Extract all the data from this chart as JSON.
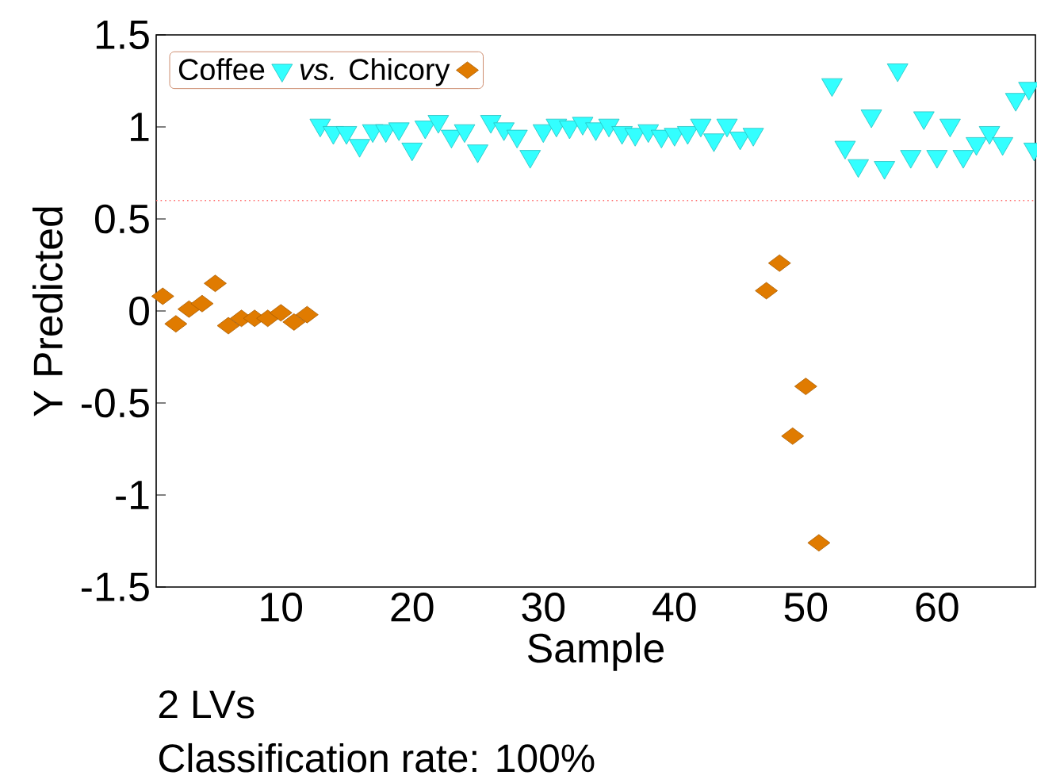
{
  "chart_data": {
    "type": "scatter",
    "xlabel": "Sample",
    "ylabel": "Y Predicted",
    "xlim": [
      0.5,
      67.5
    ],
    "ylim": [
      -1.5,
      1.5
    ],
    "xticks": [
      10,
      20,
      30,
      40,
      50,
      60
    ],
    "yticks": [
      -1.5,
      -1,
      -0.5,
      0,
      0.5,
      1,
      1.5
    ],
    "legend": "top left",
    "series": [
      {
        "name": "Coffee",
        "color": "#33ffff",
        "marker": "triangle",
        "x": [
          13,
          14,
          15,
          16,
          17,
          18,
          19,
          20,
          21,
          22,
          23,
          24,
          25,
          26,
          27,
          28,
          29,
          30,
          31,
          32,
          33,
          34,
          35,
          36,
          37,
          38,
          39,
          40,
          41,
          42,
          43,
          44,
          45,
          46,
          52,
          53,
          54,
          55,
          56,
          57,
          58,
          59,
          60,
          61,
          62,
          63,
          64,
          65,
          66,
          67,
          67.4
        ],
        "values": [
          1.01,
          0.97,
          0.97,
          0.9,
          0.98,
          0.98,
          0.99,
          0.88,
          1.0,
          1.03,
          0.95,
          0.98,
          0.87,
          1.03,
          0.99,
          0.95,
          0.84,
          0.98,
          1.01,
          1.0,
          1.02,
          0.99,
          1.01,
          0.97,
          0.96,
          0.98,
          0.95,
          0.96,
          0.97,
          1.01,
          0.93,
          1.01,
          0.94,
          0.96,
          1.23,
          0.89,
          0.79,
          1.06,
          0.78,
          1.31,
          0.84,
          1.05,
          0.84,
          1.01,
          0.84,
          0.91,
          0.97,
          0.91,
          1.15,
          1.21,
          0.88
        ]
      },
      {
        "name": "*vs.* Chicory",
        "color": "#e07b00",
        "marker": "diamond",
        "x": [
          1,
          2,
          3,
          4,
          5,
          6,
          7,
          8,
          9,
          10,
          11,
          12,
          47,
          48,
          49,
          50,
          51
        ],
        "values": [
          0.08,
          -0.07,
          0.01,
          0.04,
          0.15,
          -0.08,
          -0.04,
          -0.04,
          -0.04,
          -0.01,
          -0.06,
          -0.02,
          0.11,
          0.26,
          -0.68,
          -0.41,
          -1.26
        ]
      }
    ],
    "ref_lines": [
      {
        "axis": "y",
        "value": 0.6,
        "color": "#ff6666",
        "line_style": "dotted"
      }
    ],
    "annotations": [
      "2 LVs",
      "Classification rate: 100%"
    ]
  }
}
